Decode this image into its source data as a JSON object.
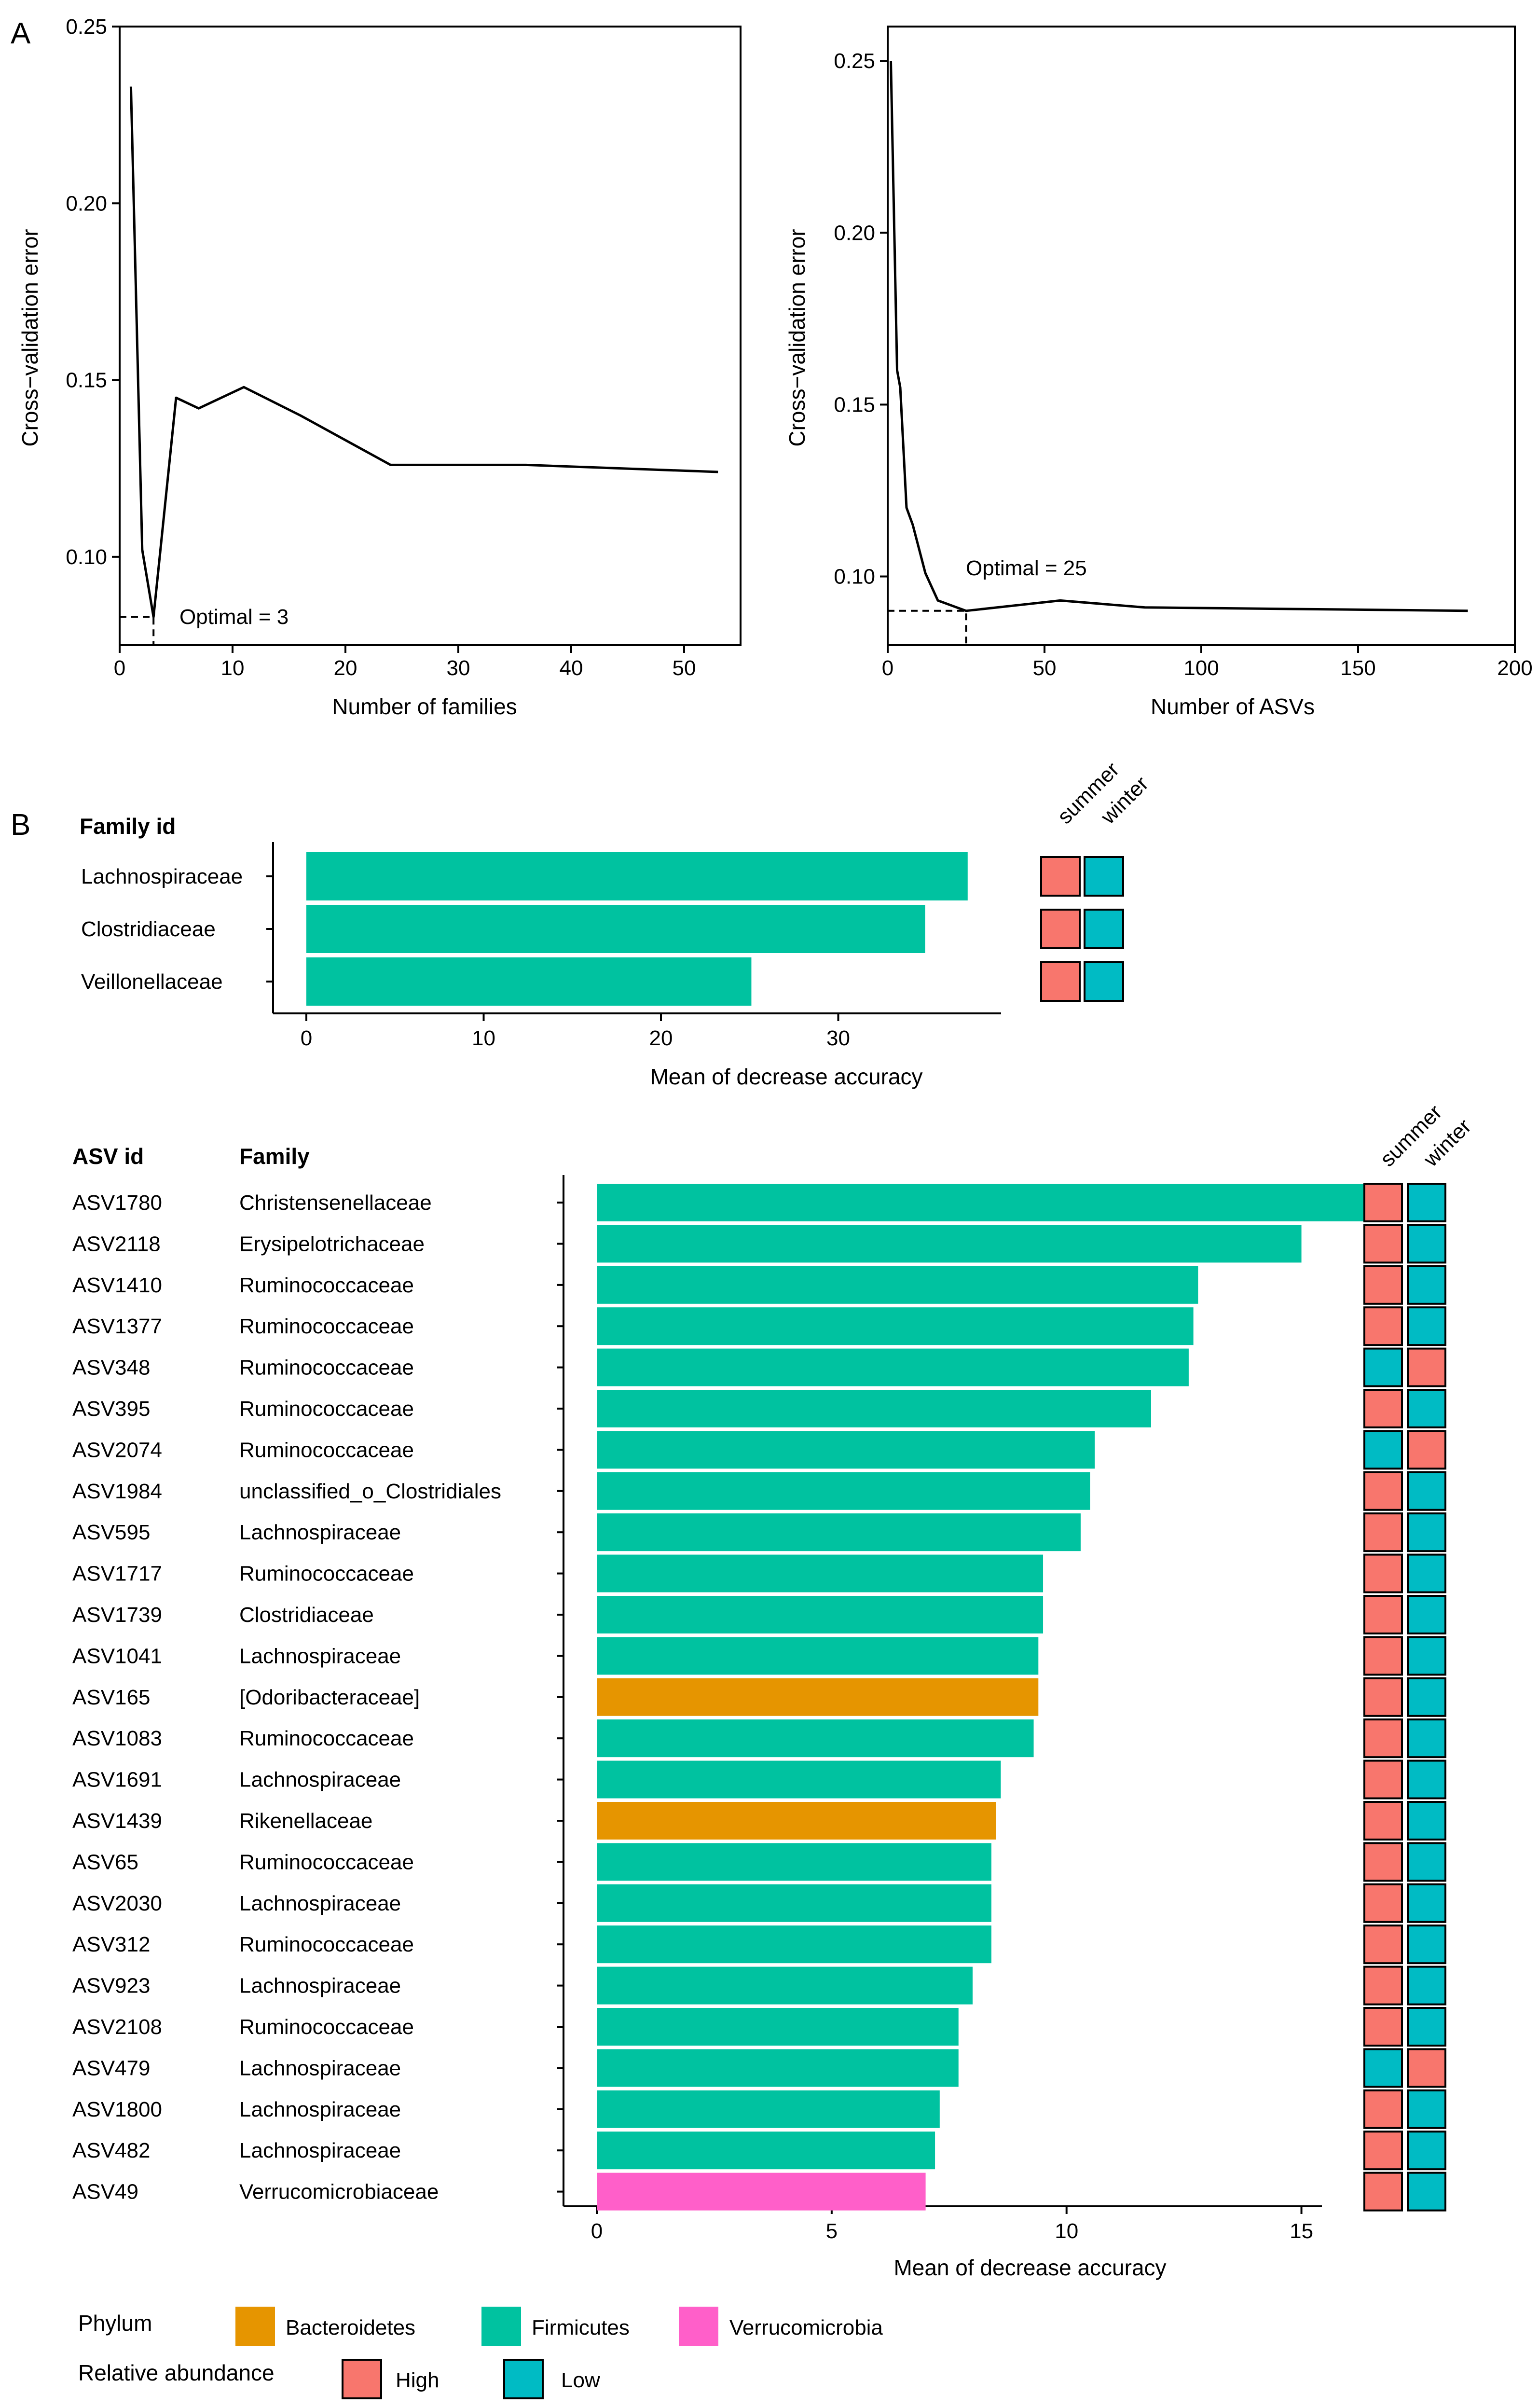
{
  "panel_labels": {
    "a": "A",
    "b": "B"
  },
  "colors": {
    "Bacteroidetes": "#E69500",
    "Firmicutes": "#00C2A0",
    "Verrucomicrobia": "#FF5FC9",
    "High": "#F8766D",
    "Low": "#00BBC4"
  },
  "headers": {
    "family_id": "Family id",
    "asv_id": "ASV id",
    "family": "Family"
  },
  "heat_columns": [
    "summer",
    "winter"
  ],
  "legend": {
    "phylum_title": "Phylum",
    "phylum_items": [
      "Bacteroidetes",
      "Firmicutes",
      "Verrucomicrobia"
    ],
    "abundance_title": "Relative abundance",
    "abundance_items": [
      "High",
      "Low"
    ]
  },
  "chart_data": [
    {
      "type": "line",
      "xlabel": "Number of families",
      "ylabel": "Cross−validation error",
      "xlim": [
        0,
        55
      ],
      "ylim": [
        0.075,
        0.25
      ],
      "xticks": [
        0,
        10,
        20,
        30,
        40,
        50
      ],
      "xtick_labels": [
        "0",
        "10",
        "20",
        "30",
        "40",
        "50"
      ],
      "yticks": [
        0.1,
        0.15,
        0.2,
        0.25
      ],
      "ytick_labels": [
        "0.10",
        "0.15",
        "0.20",
        "0.25"
      ],
      "x": [
        1,
        2,
        3,
        5,
        7,
        11,
        16,
        24,
        36,
        53
      ],
      "y": [
        0.233,
        0.102,
        0.083,
        0.145,
        0.142,
        0.148,
        0.14,
        0.126,
        0.126,
        0.124
      ],
      "optimal": {
        "x": 3,
        "y": 0.083,
        "label": "Optimal = 3"
      }
    },
    {
      "type": "line",
      "xlabel": "Number of ASVs",
      "ylabel": "Cross−validation error",
      "xlim": [
        0,
        200
      ],
      "ylim": [
        0.08,
        0.26
      ],
      "xticks": [
        0,
        50,
        100,
        150,
        200
      ],
      "xtick_labels": [
        "0",
        "50",
        "100",
        "150",
        "200"
      ],
      "yticks": [
        0.1,
        0.15,
        0.2,
        0.25
      ],
      "ytick_labels": [
        "0.10",
        "0.15",
        "0.20",
        "0.25"
      ],
      "x": [
        1,
        3,
        4,
        6,
        8,
        12,
        16,
        25,
        55,
        82,
        185
      ],
      "y": [
        0.25,
        0.16,
        0.155,
        0.12,
        0.115,
        0.101,
        0.093,
        0.09,
        0.093,
        0.091,
        0.09
      ],
      "optimal": {
        "x": 25,
        "y": 0.09,
        "label": "Optimal = 25"
      }
    },
    {
      "type": "bar",
      "orientation": "horizontal",
      "xlabel": "Mean of decrease accuracy",
      "xlim": [
        0,
        40
      ],
      "xticks": [
        0,
        10,
        20,
        30
      ],
      "xtick_labels": [
        "0",
        "10",
        "20",
        "30"
      ],
      "categories": [
        "Lachnospiraceae",
        "Clostridiaceae",
        "Veillonellaceae"
      ],
      "values": [
        37.3,
        34.9,
        25.1
      ],
      "phylum": [
        "Firmicutes",
        "Firmicutes",
        "Firmicutes"
      ],
      "abundance": [
        [
          "High",
          "Low"
        ],
        [
          "High",
          "Low"
        ],
        [
          "High",
          "Low"
        ]
      ]
    },
    {
      "type": "bar",
      "orientation": "horizontal",
      "xlabel": "Mean of decrease accuracy",
      "xlim": [
        0,
        17.5
      ],
      "xticks": [
        0,
        5,
        10,
        15
      ],
      "xtick_labels": [
        "0",
        "5",
        "10",
        "15"
      ],
      "categories": [
        "ASV1780",
        "ASV2118",
        "ASV1410",
        "ASV1377",
        "ASV348",
        "ASV395",
        "ASV2074",
        "ASV1984",
        "ASV595",
        "ASV1717",
        "ASV1739",
        "ASV1041",
        "ASV165",
        "ASV1083",
        "ASV1691",
        "ASV1439",
        "ASV65",
        "ASV2030",
        "ASV312",
        "ASV923",
        "ASV2108",
        "ASV479",
        "ASV1800",
        "ASV482",
        "ASV49"
      ],
      "families": [
        "Christensenellaceae",
        "Erysipelotrichaceae",
        "Ruminococcaceae",
        "Ruminococcaceae",
        "Ruminococcaceae",
        "Ruminococcaceae",
        "Ruminococcaceae",
        "unclassified_o_Clostridiales",
        "Lachnospiraceae",
        "Ruminococcaceae",
        "Clostridiaceae",
        "Lachnospiraceae",
        "[Odoribacteraceae]",
        "Ruminococcaceae",
        "Lachnospiraceae",
        "Rikenellaceae",
        "Ruminococcaceae",
        "Lachnospiraceae",
        "Ruminococcaceae",
        "Lachnospiraceae",
        "Ruminococcaceae",
        "Lachnospiraceae",
        "Lachnospiraceae",
        "Lachnospiraceae",
        "Verrucomicrobiaceae"
      ],
      "values": [
        16.7,
        15.0,
        12.8,
        12.7,
        12.6,
        11.8,
        10.6,
        10.5,
        10.3,
        9.5,
        9.5,
        9.4,
        9.4,
        9.3,
        8.6,
        8.5,
        8.4,
        8.4,
        8.4,
        8.0,
        7.7,
        7.7,
        7.3,
        7.2,
        7.0
      ],
      "phylum": [
        "Firmicutes",
        "Firmicutes",
        "Firmicutes",
        "Firmicutes",
        "Firmicutes",
        "Firmicutes",
        "Firmicutes",
        "Firmicutes",
        "Firmicutes",
        "Firmicutes",
        "Firmicutes",
        "Firmicutes",
        "Bacteroidetes",
        "Firmicutes",
        "Firmicutes",
        "Bacteroidetes",
        "Firmicutes",
        "Firmicutes",
        "Firmicutes",
        "Firmicutes",
        "Firmicutes",
        "Firmicutes",
        "Firmicutes",
        "Firmicutes",
        "Verrucomicrobia"
      ],
      "abundance": [
        [
          "High",
          "Low"
        ],
        [
          "High",
          "Low"
        ],
        [
          "High",
          "Low"
        ],
        [
          "High",
          "Low"
        ],
        [
          "Low",
          "High"
        ],
        [
          "High",
          "Low"
        ],
        [
          "Low",
          "High"
        ],
        [
          "High",
          "Low"
        ],
        [
          "High",
          "Low"
        ],
        [
          "High",
          "Low"
        ],
        [
          "High",
          "Low"
        ],
        [
          "High",
          "Low"
        ],
        [
          "High",
          "Low"
        ],
        [
          "High",
          "Low"
        ],
        [
          "High",
          "Low"
        ],
        [
          "High",
          "Low"
        ],
        [
          "High",
          "Low"
        ],
        [
          "High",
          "Low"
        ],
        [
          "High",
          "Low"
        ],
        [
          "High",
          "Low"
        ],
        [
          "High",
          "Low"
        ],
        [
          "Low",
          "High"
        ],
        [
          "High",
          "Low"
        ],
        [
          "High",
          "Low"
        ],
        [
          "High",
          "Low"
        ]
      ]
    }
  ]
}
